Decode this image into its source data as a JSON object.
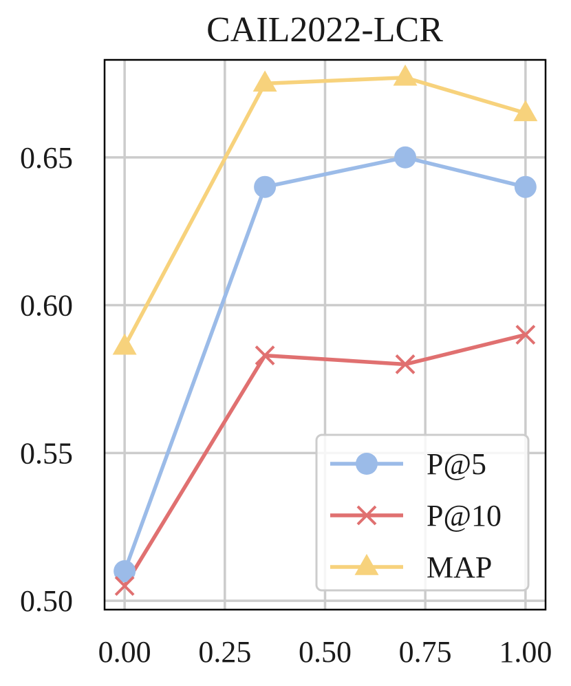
{
  "chart_data": {
    "type": "line",
    "title": "CAIL2022-LCR",
    "xlabel": "",
    "ylabel": "",
    "x": [
      0.0,
      0.35,
      0.7,
      1.0
    ],
    "xlim": [
      -0.05,
      1.05
    ],
    "ylim": [
      0.497,
      0.683
    ],
    "xticks": [
      0.0,
      0.25,
      0.5,
      0.75,
      1.0
    ],
    "xtick_labels": [
      "0.00",
      "0.25",
      "0.50",
      "0.75",
      "1.00"
    ],
    "yticks": [
      0.5,
      0.55,
      0.6,
      0.65
    ],
    "ytick_labels": [
      "0.50",
      "0.55",
      "0.60",
      "0.65"
    ],
    "grid": true,
    "legend_position": "bottom-right",
    "series": [
      {
        "name": "P@5",
        "marker": "circle",
        "color": "#9bbbe8",
        "values": [
          0.51,
          0.64,
          0.65,
          0.64
        ]
      },
      {
        "name": "P@10",
        "marker": "x",
        "color": "#e07070",
        "values": [
          0.505,
          0.583,
          0.58,
          0.59
        ]
      },
      {
        "name": "MAP",
        "marker": "triangle",
        "color": "#f7d27c",
        "values": [
          0.586,
          0.675,
          0.677,
          0.665
        ]
      }
    ]
  }
}
